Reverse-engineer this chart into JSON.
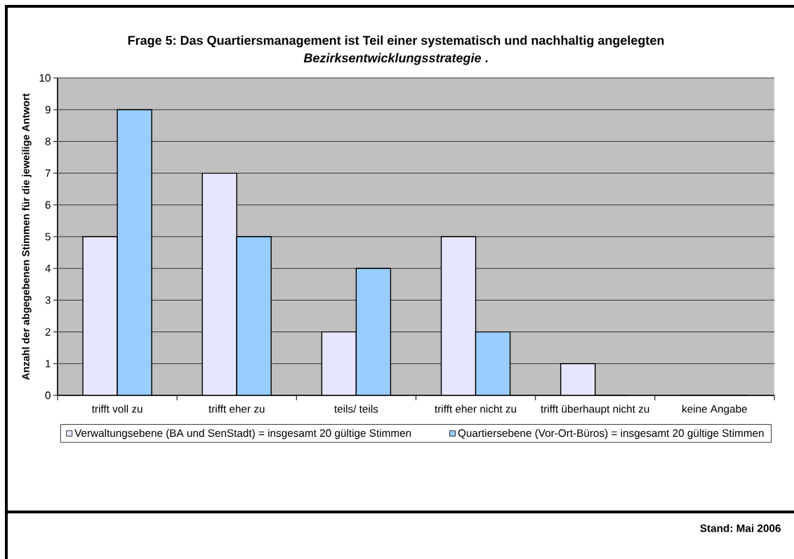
{
  "chart_data": {
    "type": "bar",
    "title": "Frage 5: Das Quartiersmanagement ist Teil einer systematisch und nachhaltig angelegten *Bezirksentwicklungsstrategie* .",
    "ylabel": "Anzahl der abgegebenen Stimmen für die jeweilige Antwort",
    "categories": [
      "trifft voll zu",
      "trifft eher zu",
      "teils/ teils",
      "trifft eher nicht zu",
      "trifft überhaupt nicht zu",
      "keine Angabe"
    ],
    "series": [
      {
        "name": "Verwaltungsebene (BA und SenStadt) = insgesamt 20 gültige Stimmen",
        "color": "#e6e6ff",
        "values": [
          5,
          7,
          2,
          5,
          1,
          0
        ]
      },
      {
        "name": "Quartiersebene (Vor-Ort-Büros) = insgesamt 20 gültige Stimmen",
        "color": "#99ccff",
        "values": [
          9,
          5,
          4,
          2,
          0,
          0
        ]
      }
    ],
    "ylim": [
      0,
      10
    ],
    "yticks": [
      0,
      1,
      2,
      3,
      4,
      5,
      6,
      7,
      8,
      9,
      10
    ],
    "grid": "y",
    "legend": "bottom",
    "annotations": [
      "Stand: Mai 2006"
    ]
  }
}
